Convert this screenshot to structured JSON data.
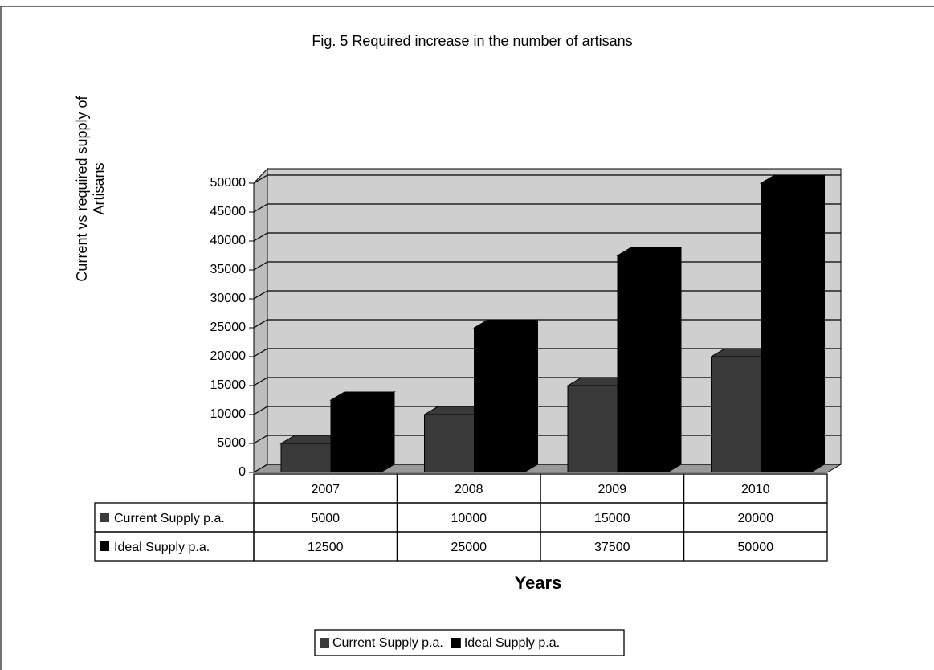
{
  "chart_data": {
    "type": "bar3d",
    "title": "Fig. 5 Required increase in the number of artisans",
    "y_label": "Current vs required supply of Artisans",
    "x_label": "Years",
    "categories": [
      "2007",
      "2008",
      "2009",
      "2010"
    ],
    "series": [
      {
        "name": "Current Supply p.a.",
        "color": "#3a3a3a",
        "values": [
          5000,
          10000,
          15000,
          20000
        ]
      },
      {
        "name": "Ideal Supply p.a.",
        "color": "#000000",
        "values": [
          12500,
          25000,
          37500,
          50000
        ]
      }
    ],
    "ylim": [
      0,
      50000
    ],
    "yticks": [
      0,
      5000,
      10000,
      15000,
      20000,
      25000,
      30000,
      35000,
      40000,
      45000,
      50000
    ],
    "grid": true,
    "legend": "bottom"
  }
}
